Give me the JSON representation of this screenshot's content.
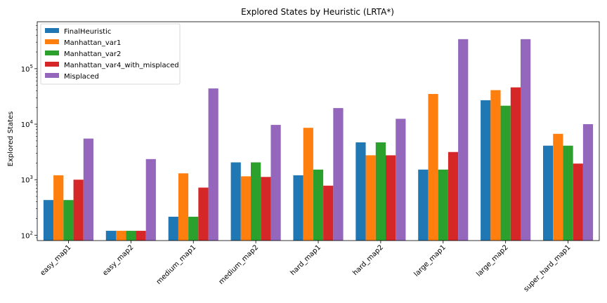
{
  "chart_data": {
    "type": "bar",
    "title": "Explored States by Heuristic (LRTA*)",
    "xlabel": "",
    "ylabel": "Explored States",
    "yscale": "log",
    "ylim": [
      80,
      700000
    ],
    "yticks": [
      100,
      1000,
      10000,
      100000
    ],
    "ytick_labels": [
      [
        "10",
        "2"
      ],
      [
        "10",
        "3"
      ],
      [
        "10",
        "4"
      ],
      [
        "10",
        "5"
      ]
    ],
    "categories": [
      "easy_map1",
      "easy_map2",
      "medium_map1",
      "medium_map2",
      "hard_map1",
      "hard_map2",
      "large_map1",
      "large_map2",
      "super_hard_map1"
    ],
    "legend_position": "upper-left",
    "grid": false,
    "series": [
      {
        "name": "FinalHeuristic",
        "color": "#1f77b4",
        "values": [
          430,
          120,
          215,
          2050,
          1200,
          4700,
          1520,
          27000,
          4100
        ]
      },
      {
        "name": "Manhattan_var1",
        "color": "#ff7f0e",
        "values": [
          1200,
          120,
          1300,
          1150,
          8600,
          2750,
          35000,
          41000,
          6700
        ]
      },
      {
        "name": "Manhattan_var2",
        "color": "#2ca02c",
        "values": [
          430,
          120,
          215,
          2050,
          1520,
          4700,
          1520,
          21500,
          4100
        ]
      },
      {
        "name": "Manhattan_var4_with_misplaced",
        "color": "#d62728",
        "values": [
          1000,
          120,
          720,
          1120,
          780,
          2750,
          3150,
          46000,
          1950
        ]
      },
      {
        "name": "Misplaced",
        "color": "#9467bd",
        "values": [
          5500,
          2350,
          44000,
          9700,
          19500,
          12500,
          340000,
          340000,
          10000
        ]
      }
    ]
  }
}
